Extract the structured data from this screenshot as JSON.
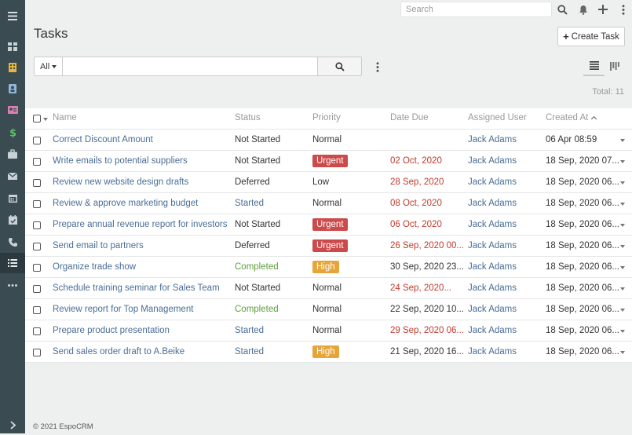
{
  "topbar": {
    "search_placeholder": "Search"
  },
  "page": {
    "title": "Tasks",
    "create_button": "Create Task"
  },
  "filter": {
    "preset": "All",
    "query": ""
  },
  "total": "Total: 11",
  "columns": {
    "name": "Name",
    "status": "Status",
    "priority": "Priority",
    "date_due": "Date Due",
    "assigned_user": "Assigned User",
    "created_at": "Created At"
  },
  "rows": [
    {
      "name": "Correct Discount Amount",
      "status": "Not Started",
      "priority": "Normal",
      "date_due": "",
      "assigned_user": "Jack Adams",
      "created_at": "06 Apr 08:59"
    },
    {
      "name": "Write emails to potential suppliers",
      "status": "Not Started",
      "priority": "Urgent",
      "date_due": "02 Oct, 2020",
      "assigned_user": "Jack Adams",
      "created_at": "18 Sep, 2020 07..."
    },
    {
      "name": "Review new website design drafts",
      "status": "Deferred",
      "priority": "Low",
      "date_due": "28 Sep, 2020",
      "assigned_user": "Jack Adams",
      "created_at": "18 Sep, 2020 06..."
    },
    {
      "name": "Review & approve marketing budget",
      "status": "Started",
      "priority": "Normal",
      "date_due": "08 Oct, 2020",
      "assigned_user": "Jack Adams",
      "created_at": "18 Sep, 2020 06..."
    },
    {
      "name": "Prepare annual revenue report for investors",
      "status": "Not Started",
      "priority": "Urgent",
      "date_due": "06 Oct, 2020",
      "assigned_user": "Jack Adams",
      "created_at": "18 Sep, 2020 06..."
    },
    {
      "name": "Send email to partners",
      "status": "Deferred",
      "priority": "Urgent",
      "date_due": "26 Sep, 2020 00...",
      "assigned_user": "Jack Adams",
      "created_at": "18 Sep, 2020 06..."
    },
    {
      "name": "Organize trade show",
      "status": "Completed",
      "priority": "High",
      "date_due": "30 Sep, 2020 23...",
      "assigned_user": "Jack Adams",
      "created_at": "18 Sep, 2020 06..."
    },
    {
      "name": "Schedule training seminar for Sales Team",
      "status": "Not Started",
      "priority": "Normal",
      "date_due": "24 Sep, 2020...",
      "assigned_user": "Jack Adams",
      "created_at": "18 Sep, 2020 06..."
    },
    {
      "name": "Review report for Top Management",
      "status": "Completed",
      "priority": "Normal",
      "date_due": "22 Sep, 2020 10...",
      "assigned_user": "Jack Adams",
      "created_at": "18 Sep, 2020 06..."
    },
    {
      "name": "Prepare product presentation",
      "status": "Started",
      "priority": "Normal",
      "date_due": "29 Sep, 2020 06...",
      "assigned_user": "Jack Adams",
      "created_at": "18 Sep, 2020 06..."
    },
    {
      "name": "Send sales order draft to A.Beike",
      "status": "Started",
      "priority": "High",
      "date_due": "21 Sep, 2020 16...",
      "assigned_user": "Jack Adams",
      "created_at": "18 Sep, 2020 06..."
    }
  ],
  "footer": "© 2021 EspoCRM",
  "colors": {
    "sidebar_bg": "#3a4b52",
    "link": "#4a6d95",
    "overdue": "#c0392b",
    "completed": "#5c9e3c",
    "urgent": "#cc4a4a",
    "high": "#e5a53b"
  },
  "sidebar_icons": [
    "menu-icon",
    "dashboard-icon",
    "accounts-icon",
    "contacts-icon",
    "leads-icon",
    "opportunities-icon",
    "cases-icon",
    "emails-icon",
    "calendar-icon",
    "meetings-icon",
    "calls-icon",
    "tasks-icon",
    "more-icon",
    "collapse-icon"
  ]
}
